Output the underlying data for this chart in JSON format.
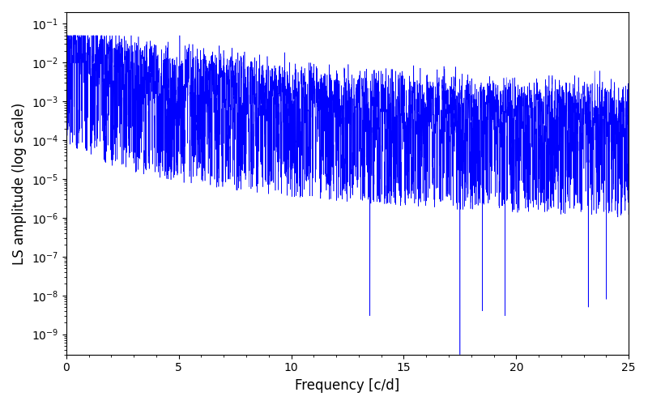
{
  "title": "",
  "xlabel": "Frequency [c/d]",
  "ylabel": "LS amplitude (log scale)",
  "line_color": "#0000ff",
  "xlim": [
    0,
    25
  ],
  "ylim": [
    3e-10,
    0.2
  ],
  "freq_max": 25,
  "n_points": 8000,
  "seed": 7,
  "figsize": [
    8.0,
    5.0
  ],
  "dpi": 100,
  "deep_notches": [
    13.5,
    17.5,
    18.5,
    19.5,
    23.2,
    24.0
  ],
  "deep_notch_vals": [
    3e-09,
    3e-10,
    4e-09,
    3e-09,
    5e-09,
    8e-09
  ]
}
